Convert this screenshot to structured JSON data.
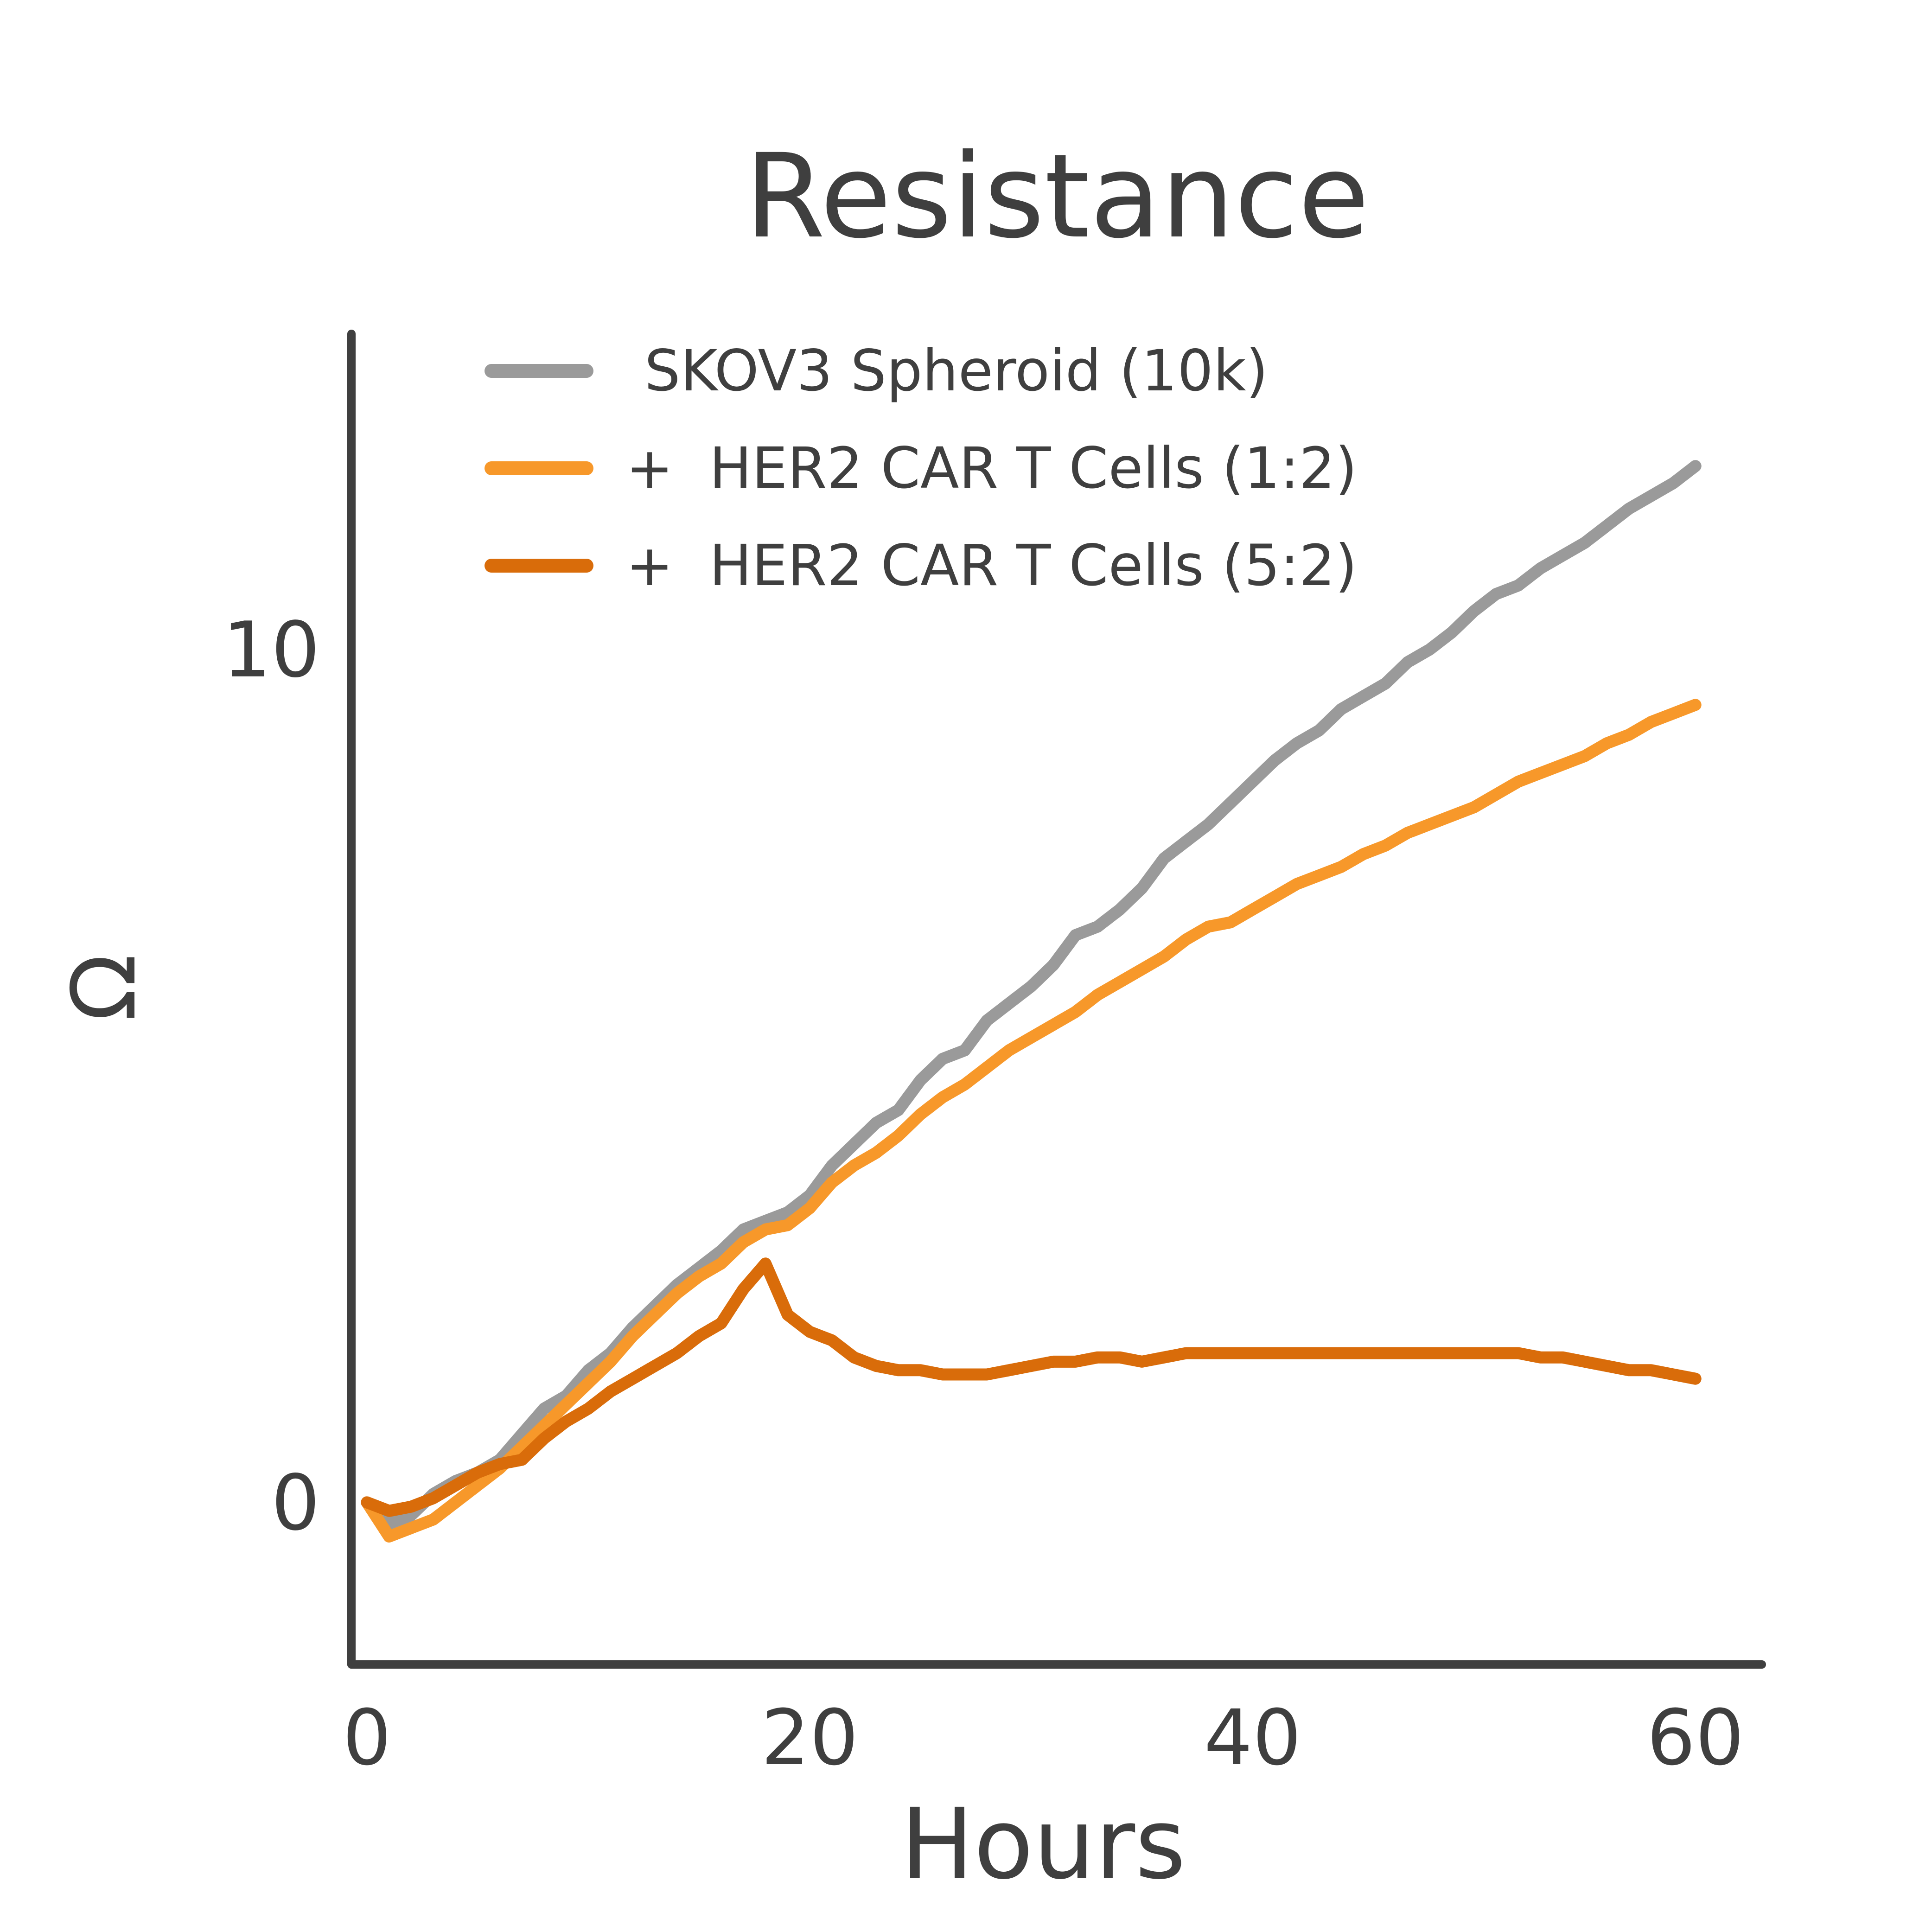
{
  "chart_data": {
    "type": "line",
    "title": "Resistance",
    "xlabel": "Hours",
    "ylabel": "Ω",
    "xlim": [
      -0.7,
      63
    ],
    "ylim": [
      -1.9,
      13.7
    ],
    "xticks": [
      0,
      20,
      40,
      60
    ],
    "xtick_labels": [
      "0",
      "20",
      "40",
      "60"
    ],
    "yticks": [
      0,
      10
    ],
    "ytick_labels": [
      "0",
      "10"
    ],
    "grid": false,
    "legend_position": "top-left",
    "series": [
      {
        "name": "SKOV3 Spheroid (10k)",
        "color": "#9a9a9a",
        "x": [
          0,
          1,
          2,
          3,
          4,
          5,
          6,
          7,
          8,
          9,
          10,
          11,
          12,
          13,
          14,
          15,
          16,
          17,
          18,
          19,
          20,
          21,
          22,
          23,
          24,
          25,
          26,
          27,
          28,
          29,
          30,
          31,
          32,
          33,
          34,
          35,
          36,
          37,
          38,
          39,
          40,
          41,
          42,
          43,
          44,
          45,
          46,
          47,
          48,
          49,
          50,
          51,
          52,
          53,
          54,
          55,
          56,
          57,
          58,
          59,
          60
        ],
        "y": [
          0.0,
          -0.25,
          -0.15,
          0.1,
          0.25,
          0.35,
          0.5,
          0.8,
          1.1,
          1.25,
          1.55,
          1.75,
          2.05,
          2.3,
          2.55,
          2.75,
          2.95,
          3.2,
          3.3,
          3.4,
          3.6,
          3.95,
          4.2,
          4.45,
          4.6,
          4.95,
          5.2,
          5.3,
          5.65,
          5.85,
          6.05,
          6.3,
          6.65,
          6.75,
          6.95,
          7.2,
          7.55,
          7.75,
          7.95,
          8.2,
          8.45,
          8.7,
          8.9,
          9.05,
          9.3,
          9.45,
          9.6,
          9.85,
          10.0,
          10.2,
          10.45,
          10.65,
          10.75,
          10.95,
          11.1,
          11.25,
          11.45,
          11.65,
          11.8,
          11.95,
          12.15
        ]
      },
      {
        "name": "+  HER2 CAR T Cells (1:2)",
        "color": "#f7982a",
        "x": [
          0,
          1,
          2,
          3,
          4,
          5,
          6,
          7,
          8,
          9,
          10,
          11,
          12,
          13,
          14,
          15,
          16,
          17,
          18,
          19,
          20,
          21,
          22,
          23,
          24,
          25,
          26,
          27,
          28,
          29,
          30,
          31,
          32,
          33,
          34,
          35,
          36,
          37,
          38,
          39,
          40,
          41,
          42,
          43,
          44,
          45,
          46,
          47,
          48,
          49,
          50,
          51,
          52,
          53,
          54,
          55,
          56,
          57,
          58,
          59,
          60
        ],
        "y": [
          0.0,
          -0.4,
          -0.3,
          -0.2,
          0.0,
          0.2,
          0.4,
          0.65,
          0.9,
          1.15,
          1.4,
          1.65,
          1.95,
          2.2,
          2.45,
          2.65,
          2.8,
          3.05,
          3.2,
          3.25,
          3.45,
          3.75,
          3.95,
          4.1,
          4.3,
          4.55,
          4.75,
          4.9,
          5.1,
          5.3,
          5.45,
          5.6,
          5.75,
          5.95,
          6.1,
          6.25,
          6.4,
          6.6,
          6.75,
          6.8,
          6.95,
          7.1,
          7.25,
          7.35,
          7.45,
          7.6,
          7.7,
          7.85,
          7.95,
          8.05,
          8.15,
          8.3,
          8.45,
          8.55,
          8.65,
          8.75,
          8.9,
          9.0,
          9.15,
          9.25,
          9.35
        ]
      },
      {
        "name": "+  HER2 CAR T Cells (5:2)",
        "color": "#d96c0a",
        "x": [
          0,
          1,
          2,
          3,
          4,
          5,
          6,
          7,
          8,
          9,
          10,
          11,
          12,
          13,
          14,
          15,
          16,
          17,
          18,
          19,
          20,
          21,
          22,
          23,
          24,
          25,
          26,
          27,
          28,
          29,
          30,
          31,
          32,
          33,
          34,
          35,
          36,
          37,
          38,
          39,
          40,
          41,
          42,
          43,
          44,
          45,
          46,
          47,
          48,
          49,
          50,
          51,
          52,
          53,
          54,
          55,
          56,
          57,
          58,
          59,
          60
        ],
        "y": [
          0.0,
          -0.1,
          -0.05,
          0.05,
          0.2,
          0.35,
          0.45,
          0.5,
          0.75,
          0.95,
          1.1,
          1.3,
          1.45,
          1.6,
          1.75,
          1.95,
          2.1,
          2.5,
          2.8,
          2.2,
          2.0,
          1.9,
          1.7,
          1.6,
          1.55,
          1.55,
          1.5,
          1.5,
          1.5,
          1.55,
          1.6,
          1.65,
          1.65,
          1.7,
          1.7,
          1.65,
          1.7,
          1.75,
          1.75,
          1.75,
          1.75,
          1.75,
          1.75,
          1.75,
          1.75,
          1.75,
          1.75,
          1.75,
          1.75,
          1.75,
          1.75,
          1.75,
          1.75,
          1.7,
          1.7,
          1.65,
          1.6,
          1.55,
          1.55,
          1.5,
          1.45
        ]
      }
    ]
  }
}
